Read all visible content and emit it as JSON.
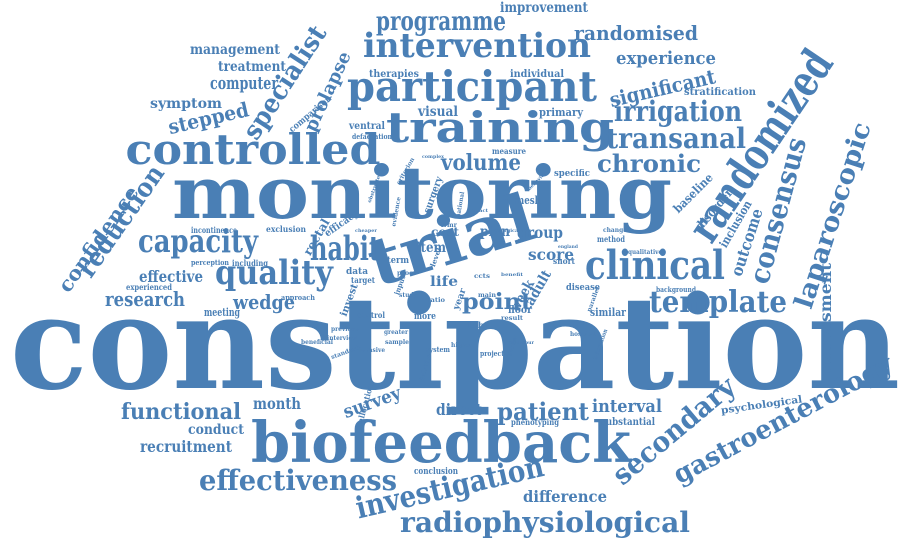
{
  "words": {
    "w1": "constipation",
    "w2": "monitoring",
    "w3": "biofeedback",
    "w4": "trial",
    "w5": "training",
    "w6": "participant",
    "w7": "controlled",
    "w8": "randomized",
    "w9": "intervention",
    "w10": "clinical",
    "w11": "investigation",
    "w12": "radiophysiological",
    "w13": "effectiveness",
    "w14": "gastroenterology",
    "w15": "consensus",
    "w16": "laparoscopic",
    "w17": "secondary",
    "w18": "template",
    "w19": "quality",
    "w20": "capacity",
    "w21": "transanal",
    "w22": "irrigation",
    "w23": "programme",
    "w24": "habit",
    "w25": "specialist",
    "w26": "patient",
    "w27": "chronic",
    "w28": "volume",
    "w29": "reduction",
    "w30": "confidence",
    "w31": "functional",
    "w32": "research",
    "w33": "point",
    "w34": "randomised",
    "w35": "significant",
    "w36": "experience",
    "w37": "stepped",
    "w38": "prolapse",
    "w39": "wedge",
    "w40": "outcome",
    "w41": "assessment",
    "w42": "survey",
    "w43": "interval",
    "w44": "difference",
    "w45": "recruitment",
    "w46": "computer",
    "w47": "management",
    "w48": "treatment",
    "w49": "improvement",
    "w50": "symptom",
    "w51": "effective",
    "w52": "month",
    "w53": "direct",
    "w54": "conduct",
    "w55": "group",
    "w56": "score",
    "w57": "plan",
    "w58": "visual",
    "w59": "psychological",
    "w60": "baseline",
    "w61": "disorder",
    "w62": "inclusion",
    "w63": "adult",
    "w64": "week",
    "w65": "life",
    "w66": "item",
    "w67": "cost",
    "w68": "primary",
    "w69": "therapies",
    "w70": "individual",
    "w71": "stratification",
    "w72": "comparison",
    "w73": "ventral",
    "w74": "defaecation",
    "w75": "specific",
    "w76": "surgery",
    "w77": "measure",
    "w78": "mesh",
    "w79": "rectal",
    "w80": "efficacy",
    "w81": "incontinence",
    "w82": "exclusion",
    "w83": "perception",
    "w84": "including",
    "w85": "experienced",
    "w86": "meeting",
    "w87": "approach",
    "w88": "data",
    "w89": "target",
    "w90": "term",
    "w91": "invest",
    "w92": "control",
    "w93": "more",
    "w94": "floor",
    "w95": "main",
    "w96": "result",
    "w97": "disease",
    "w98": "similar",
    "w99": "background",
    "w100": "short",
    "w101": "method",
    "w102": "qualitative",
    "w103": "change",
    "w104": "previous",
    "w105": "interview",
    "w106": "beneficial",
    "w107": "standard",
    "w108": "invasive",
    "w109": "allocation",
    "w110": "system",
    "w111": "project",
    "w112": "phenotyping",
    "w113": "substantial",
    "w114": "conclusion",
    "w115": "information",
    "w116": "hospital",
    "w117": "sample",
    "w118": "greater",
    "w119": "study",
    "w120": "proc",
    "w121": "lvmr",
    "w122": "criterion",
    "w123": "complex",
    "w124": "cheaper",
    "w125": "evidence",
    "w126": "national",
    "w127": "behavior",
    "w128": "england",
    "w129": "parallel",
    "w130": "definitive",
    "w131": "behaviour",
    "w132": "expertise",
    "w133": "level",
    "w134": "input",
    "w135": "ratio",
    "w136": "year",
    "w137": "ccts",
    "w138": "higher",
    "w139": "bibf",
    "w140": "benefit",
    "w141": "obstructed",
    "w142": "impact",
    "w143": "surgical"
  },
  "colors": {
    "word": "#4a7fb5",
    "background": "#ffffff"
  }
}
